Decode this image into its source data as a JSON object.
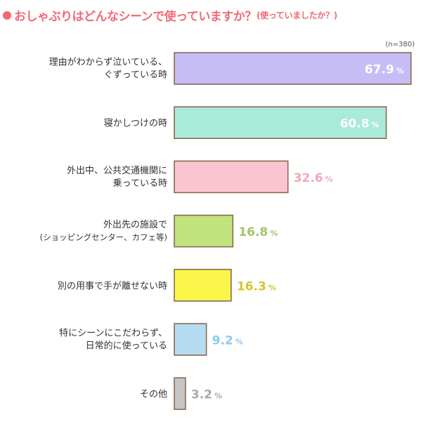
{
  "title": "おしゃぶりはどんなシーンで使っていますか？",
  "subtitle": "(使っていましたか？)",
  "sample_note": "(n=380)",
  "colors": {
    "title": "#f06a73",
    "outline": "#8a6a4e",
    "label_text": "#333333"
  },
  "chart_data": {
    "type": "bar",
    "orientation": "horizontal",
    "unit": "%",
    "xlim": [
      0,
      100
    ],
    "grid": false,
    "legend": "none",
    "categories": [
      [
        "理由がわからず泣いている、",
        "ぐずっている時"
      ],
      [
        "寝かしつけの時"
      ],
      [
        "外出中、公共交通機関に",
        "乗っている時"
      ],
      [
        "外出先の施設で",
        "(ショッピングセンター、カフェ等)"
      ],
      [
        "別の用事で手が離せない時"
      ],
      [
        "特にシーンにこだわらず、",
        "日常的に使っている"
      ],
      [
        "その他"
      ]
    ],
    "values": [
      67.9,
      60.8,
      32.6,
      16.8,
      16.3,
      9.2,
      3.2
    ],
    "labels": [
      "67.9",
      "60.8",
      "32.6",
      "16.8",
      "16.3",
      "9.2",
      "3.2"
    ],
    "bar_colors": [
      "#c6bdf6",
      "#a9ead8",
      "#fac5d0",
      "#c0e37e",
      "#fbf64a",
      "#b5dcf0",
      "#c6c6c6"
    ],
    "label_colors": [
      "#ffffff",
      "#ffffff",
      "#f7a6b9",
      "#a3c46a",
      "#d8c427",
      "#8ccbef",
      "#a8a8a8"
    ],
    "label_inside": [
      true,
      true,
      false,
      false,
      false,
      false,
      false
    ]
  }
}
